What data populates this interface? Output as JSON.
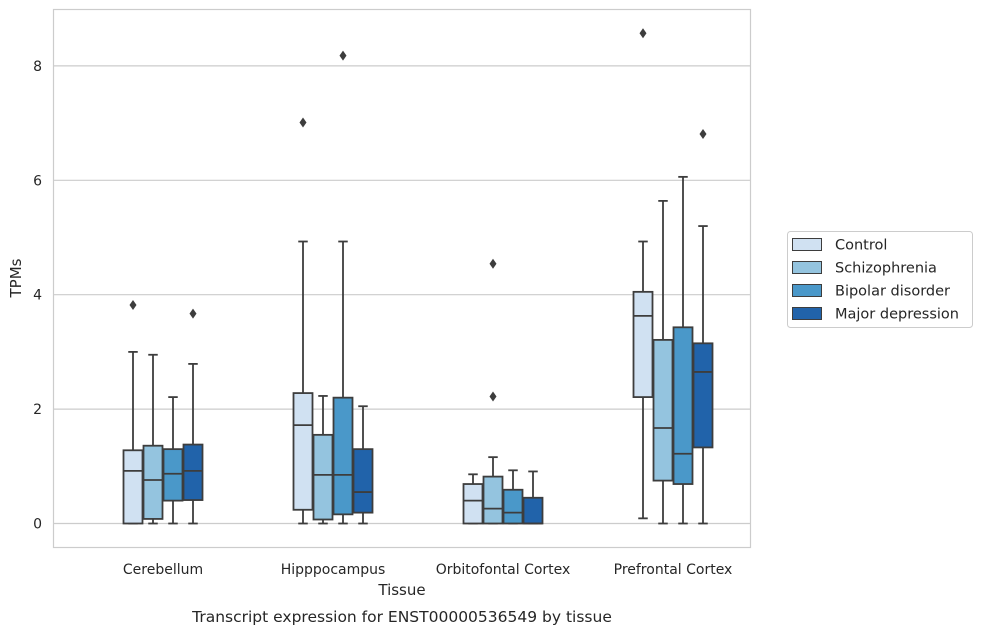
{
  "chart_data": {
    "type": "box",
    "title": "",
    "caption": "Transcript expression for ENST00000536549 by tissue",
    "xlabel": "Tissue",
    "ylabel": "TPMs",
    "ylim": [
      -0.4,
      9.0
    ],
    "yticks": [
      0,
      2,
      4,
      6,
      8
    ],
    "grid": true,
    "legend_position": "right-center",
    "categories": [
      "Cerebellum",
      "Hipppocampus",
      "Orbitofontal Cortex",
      "Prefrontal Cortex"
    ],
    "series": [
      {
        "name": "Control",
        "color": "#d0e1f2",
        "boxes": [
          {
            "whislo": 0.0,
            "q1": 0.0,
            "med": 0.92,
            "q3": 1.28,
            "whishi": 3.0,
            "fliers": [
              3.82
            ]
          },
          {
            "whislo": 0.0,
            "q1": 0.24,
            "med": 1.72,
            "q3": 2.28,
            "whishi": 4.93,
            "fliers": [
              7.01
            ]
          },
          {
            "whislo": 0.0,
            "q1": 0.0,
            "med": 0.4,
            "q3": 0.69,
            "whishi": 0.86,
            "fliers": []
          },
          {
            "whislo": 0.09,
            "q1": 2.21,
            "med": 3.63,
            "q3": 4.05,
            "whishi": 4.93,
            "fliers": [
              8.57
            ]
          }
        ]
      },
      {
        "name": "Schizophrenia",
        "color": "#94c4df",
        "boxes": [
          {
            "whislo": 0.0,
            "q1": 0.08,
            "med": 0.76,
            "q3": 1.36,
            "whishi": 2.95,
            "fliers": []
          },
          {
            "whislo": 0.0,
            "q1": 0.07,
            "med": 0.85,
            "q3": 1.55,
            "whishi": 2.23,
            "fliers": []
          },
          {
            "whislo": 0.0,
            "q1": 0.0,
            "med": 0.26,
            "q3": 0.82,
            "whishi": 1.16,
            "fliers": [
              2.22,
              4.54
            ]
          },
          {
            "whislo": 0.0,
            "q1": 0.75,
            "med": 1.67,
            "q3": 3.21,
            "whishi": 5.64,
            "fliers": []
          }
        ]
      },
      {
        "name": "Bipolar disorder",
        "color": "#4a98c9",
        "boxes": [
          {
            "whislo": 0.0,
            "q1": 0.4,
            "med": 0.87,
            "q3": 1.3,
            "whishi": 2.21,
            "fliers": []
          },
          {
            "whislo": 0.0,
            "q1": 0.16,
            "med": 0.85,
            "q3": 2.2,
            "whishi": 4.93,
            "fliers": [
              8.18
            ]
          },
          {
            "whislo": 0.0,
            "q1": 0.0,
            "med": 0.19,
            "q3": 0.59,
            "whishi": 0.93,
            "fliers": []
          },
          {
            "whislo": 0.0,
            "q1": 0.69,
            "med": 1.22,
            "q3": 3.43,
            "whishi": 6.06,
            "fliers": []
          }
        ]
      },
      {
        "name": "Major depression",
        "color": "#2163aa",
        "boxes": [
          {
            "whislo": 0.0,
            "q1": 0.41,
            "med": 0.92,
            "q3": 1.38,
            "whishi": 2.79,
            "fliers": [
              3.67
            ]
          },
          {
            "whislo": 0.0,
            "q1": 0.19,
            "med": 0.55,
            "q3": 1.3,
            "whishi": 2.05,
            "fliers": []
          },
          {
            "whislo": 0.0,
            "q1": 0.0,
            "med": 0.0,
            "q3": 0.45,
            "whishi": 0.91,
            "fliers": []
          },
          {
            "whislo": 0.0,
            "q1": 1.33,
            "med": 2.65,
            "q3": 3.15,
            "whishi": 5.2,
            "fliers": [
              6.81
            ]
          }
        ]
      }
    ]
  },
  "colors": {
    "edge": "#3d3d3d",
    "grid": "#cccccc",
    "frame": "#cccccc",
    "background": "#ffffff"
  }
}
